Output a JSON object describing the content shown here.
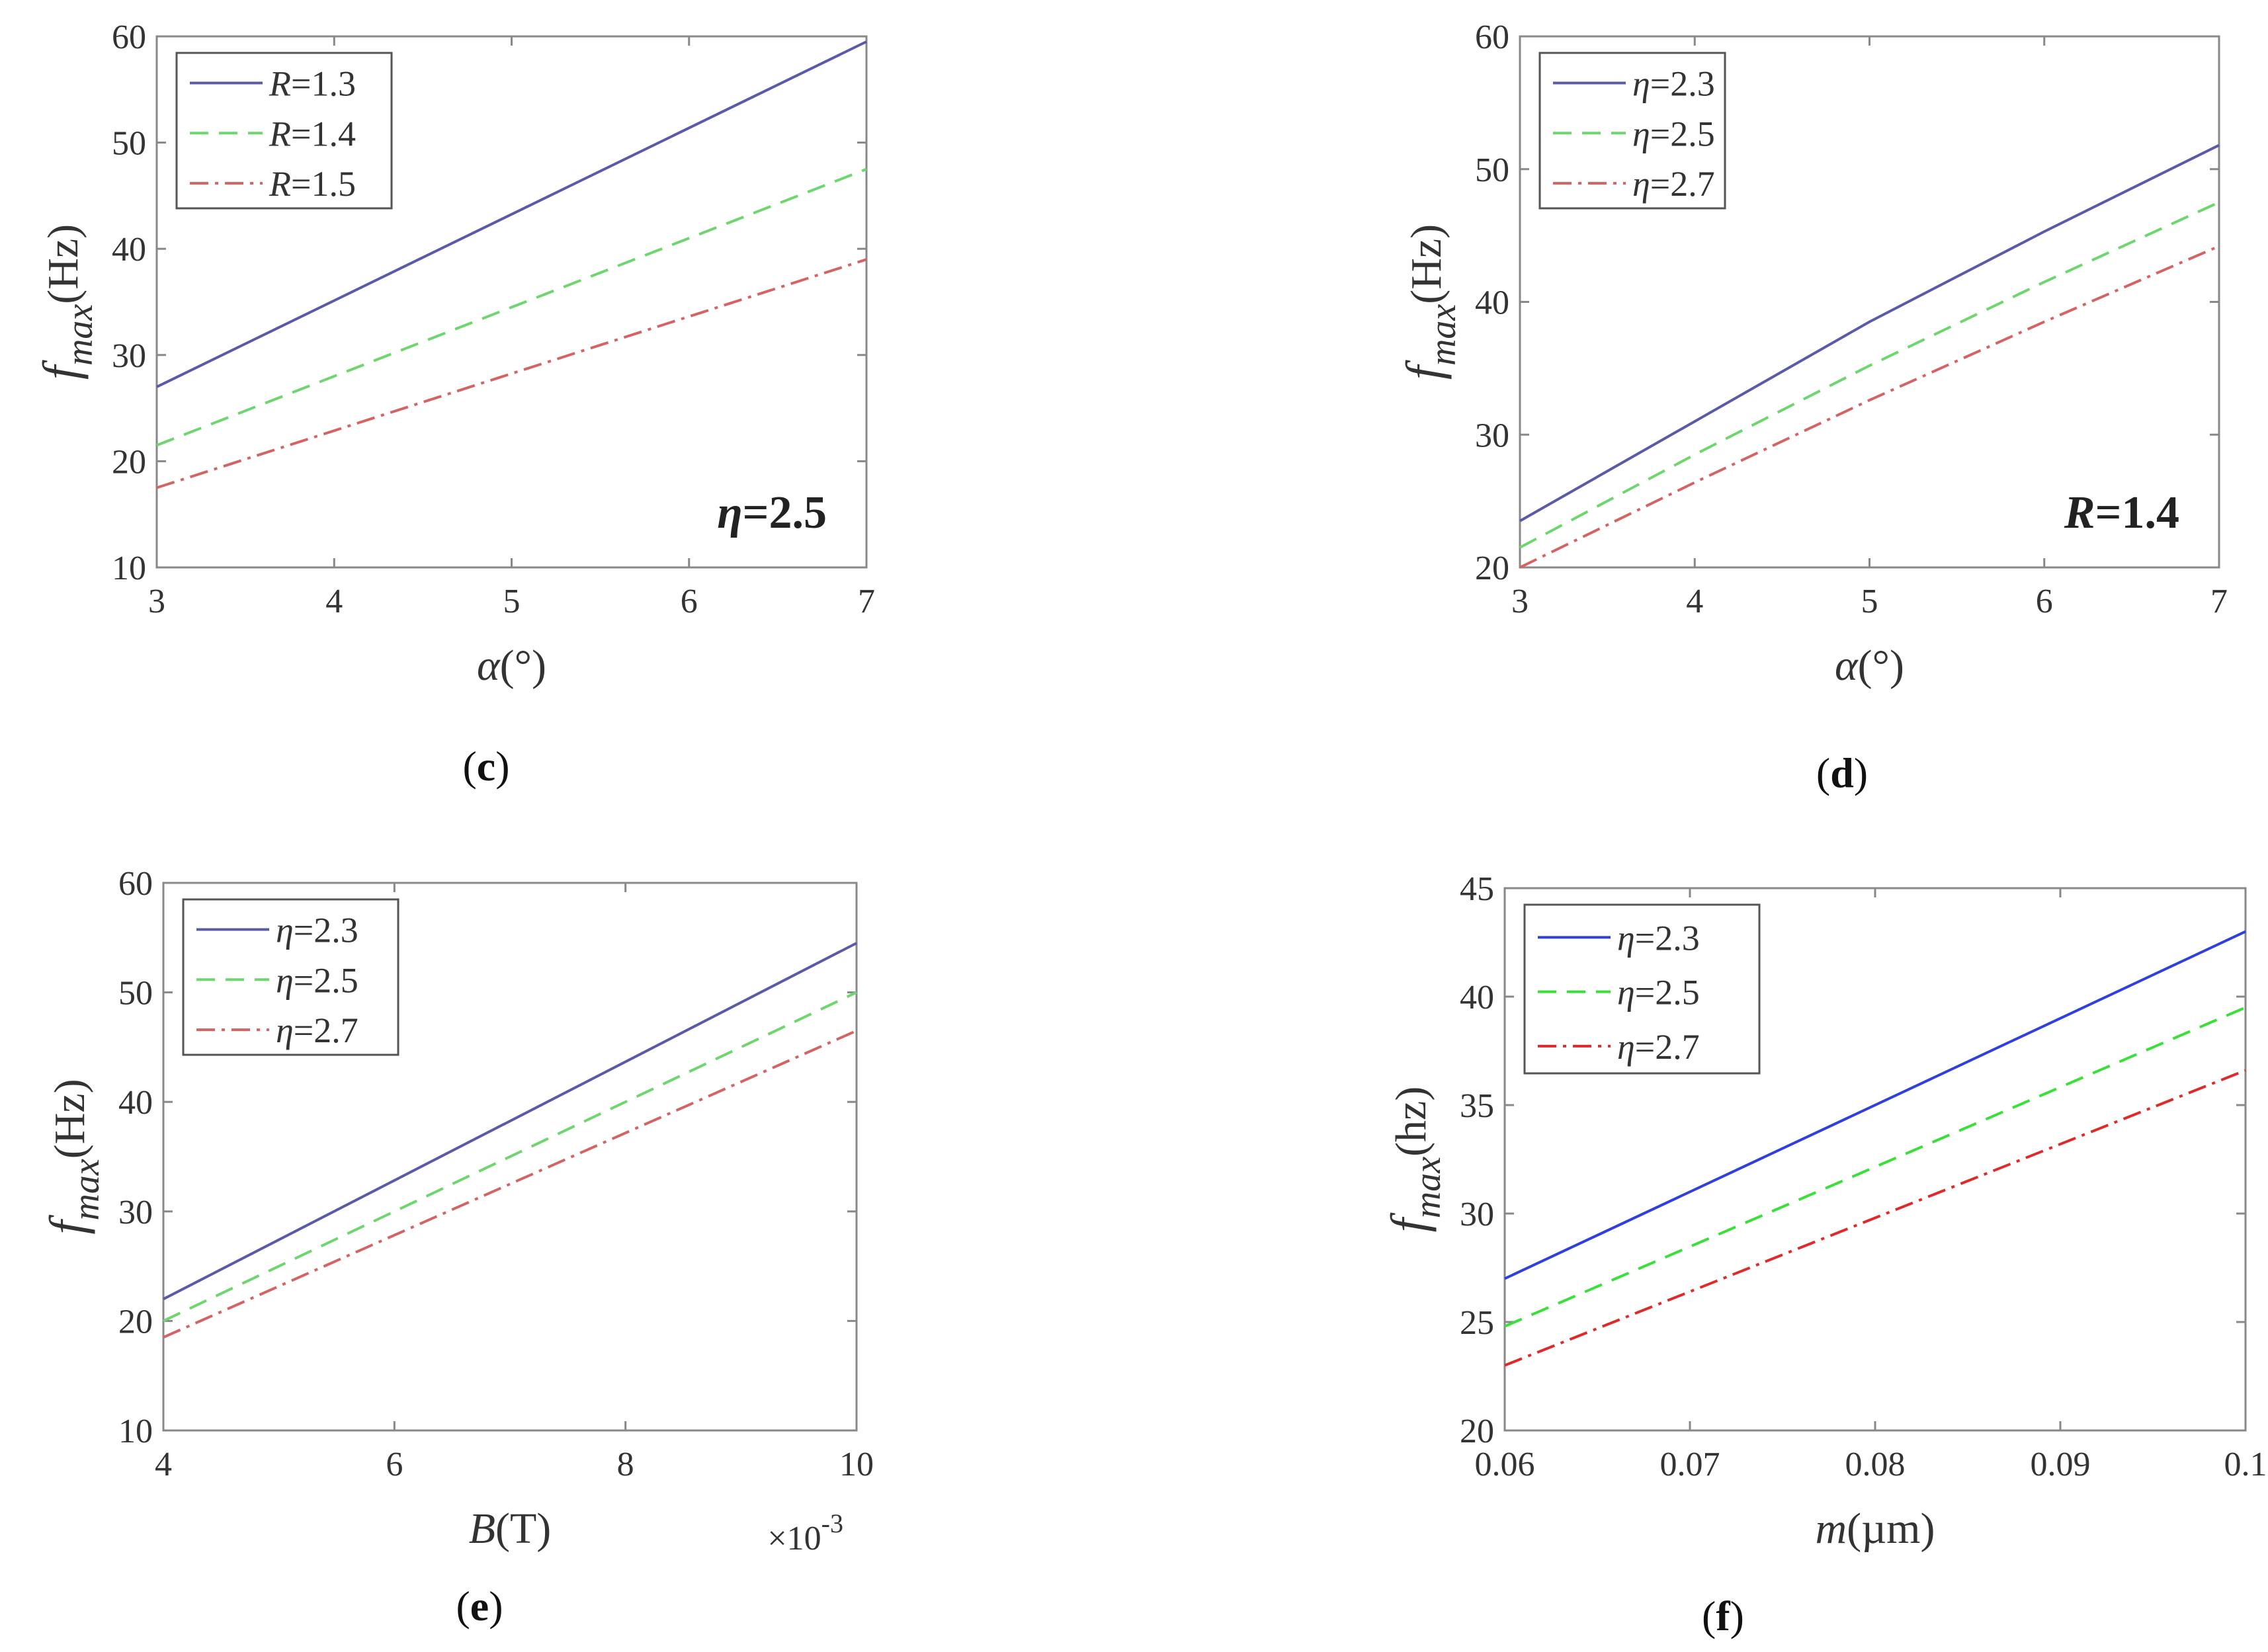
{
  "chart_data": [
    {
      "id": "c",
      "type": "line",
      "panel_label": "c",
      "xlabel_symbol": "α",
      "xlabel_unit": "(°)",
      "ylabel_symbol": "f",
      "ylabel_sub": "max",
      "ylabel_unit": "(Hz)",
      "xlim": [
        3,
        7
      ],
      "ylim": [
        10,
        60
      ],
      "xticks": [
        "3",
        "4",
        "5",
        "6",
        "7"
      ],
      "yticks": [
        "10",
        "20",
        "30",
        "40",
        "50",
        "60"
      ],
      "annotation": {
        "sym": "η",
        "text": "=2.5"
      },
      "x": [
        3,
        7
      ],
      "series": [
        {
          "name": "R=1.3",
          "sym": "R",
          "val": "=1.3",
          "values": [
            27,
            59.5
          ],
          "color": "#5a5aa8",
          "dash": ""
        },
        {
          "name": "R=1.4",
          "sym": "R",
          "val": "=1.4",
          "values": [
            21.5,
            47.5
          ],
          "color": "#6fd66f",
          "dash": "28,16"
        },
        {
          "name": "R=1.5",
          "sym": "R",
          "val": "=1.5",
          "values": [
            17.5,
            39
          ],
          "color": "#d46464",
          "dash": "28,10,5,10"
        }
      ]
    },
    {
      "id": "d",
      "type": "line",
      "panel_label": "d",
      "xlabel_symbol": "α",
      "xlabel_unit": "(°)",
      "ylabel_symbol": "f",
      "ylabel_sub": "max",
      "ylabel_unit": "(Hz)",
      "xlim": [
        3,
        7
      ],
      "ylim": [
        20,
        60
      ],
      "xticks": [
        "3",
        "4",
        "5",
        "6",
        "7"
      ],
      "yticks": [
        "20",
        "30",
        "40",
        "50",
        "60"
      ],
      "annotation": {
        "sym": "R",
        "text": "=1.4"
      },
      "x": [
        3,
        4,
        5,
        6,
        7
      ],
      "series": [
        {
          "name": "η=2.3",
          "sym": "η",
          "val": "=2.3",
          "values": [
            23.5,
            31,
            38.5,
            45.3,
            51.8
          ],
          "color": "#5a5aa8",
          "dash": ""
        },
        {
          "name": "η=2.5",
          "sym": "η",
          "val": "=2.5",
          "values": [
            21.5,
            28.5,
            35.2,
            41.5,
            47.5
          ],
          "color": "#6fd66f",
          "dash": "28,16"
        },
        {
          "name": "η=2.7",
          "sym": "η",
          "val": "=2.7",
          "values": [
            20,
            26.4,
            32.6,
            38.5,
            44.2
          ],
          "color": "#d46464",
          "dash": "28,10,5,10"
        }
      ]
    },
    {
      "id": "e",
      "type": "line",
      "panel_label": "e",
      "xlabel_symbol": "B",
      "xlabel_unit": "(T)",
      "ylabel_symbol": "f",
      "ylabel_sub": "max",
      "ylabel_unit": "(Hz)",
      "xlim": [
        4,
        10
      ],
      "ylim": [
        10,
        60
      ],
      "xticks": [
        "4",
        "6",
        "8",
        "10"
      ],
      "yticks": [
        "10",
        "20",
        "30",
        "40",
        "50",
        "60"
      ],
      "x_multiplier": "×10",
      "x_multiplier_exp": "-3",
      "x": [
        4,
        10
      ],
      "series": [
        {
          "name": "η=2.3",
          "sym": "η",
          "val": "=2.3",
          "values": [
            22,
            54.5
          ],
          "color": "#5a5aa8",
          "dash": ""
        },
        {
          "name": "η=2.5",
          "sym": "η",
          "val": "=2.5",
          "values": [
            20,
            50
          ],
          "color": "#6fd66f",
          "dash": "28,16"
        },
        {
          "name": "η=2.7",
          "sym": "η",
          "val": "=2.7",
          "values": [
            18.5,
            46.5
          ],
          "color": "#d46464",
          "dash": "28,10,5,10"
        }
      ]
    },
    {
      "id": "f",
      "type": "line",
      "panel_label": "f",
      "xlabel_symbol": "m",
      "xlabel_unit": "(µm)",
      "ylabel_symbol": "f",
      "ylabel_sub": "max",
      "ylabel_unit": "(hz)",
      "xlim": [
        0.06,
        0.1
      ],
      "ylim": [
        20,
        45
      ],
      "xticks": [
        "0.06",
        "0.07",
        "0.08",
        "0.09",
        "0.1"
      ],
      "yticks": [
        "20",
        "25",
        "30",
        "35",
        "40",
        "45"
      ],
      "x": [
        0.06,
        0.1
      ],
      "series": [
        {
          "name": "η=2.3",
          "sym": "η",
          "val": "=2.3",
          "values": [
            27,
            43
          ],
          "color": "#2f3fe0",
          "dash": ""
        },
        {
          "name": "η=2.5",
          "sym": "η",
          "val": "=2.5",
          "values": [
            24.8,
            39.5
          ],
          "color": "#3ae03a",
          "dash": "28,16"
        },
        {
          "name": "η=2.7",
          "sym": "η",
          "val": "=2.7",
          "values": [
            23,
            36.6
          ],
          "color": "#e02a2a",
          "dash": "28,10,5,10"
        }
      ]
    }
  ]
}
